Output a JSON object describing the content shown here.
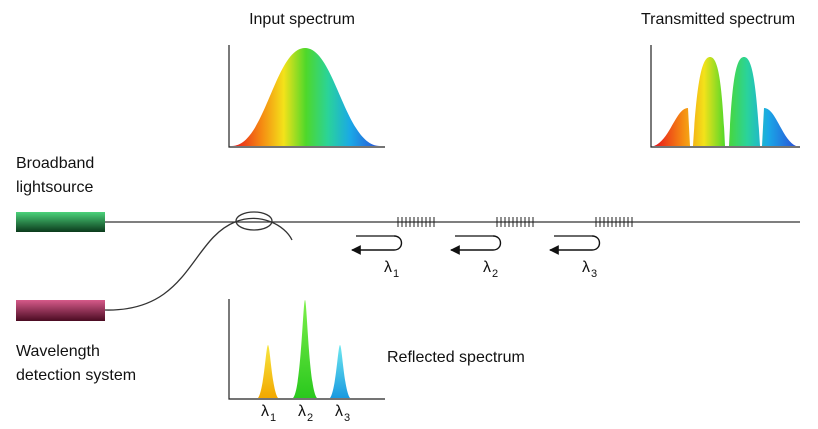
{
  "labels": {
    "input_spectrum": "Input spectrum",
    "transmitted_spectrum": "Transmitted spectrum",
    "reflected_spectrum": "Reflected spectrum",
    "source": [
      "Broadband",
      "lightsource"
    ],
    "detector": [
      "Wavelength",
      "detection system"
    ]
  },
  "gratings": [
    {
      "symbol": "λ",
      "index": "1"
    },
    {
      "symbol": "λ",
      "index": "2"
    },
    {
      "symbol": "λ",
      "index": "3"
    }
  ],
  "reflected_peaks": [
    {
      "symbol": "λ",
      "index": "1"
    },
    {
      "symbol": "λ",
      "index": "2"
    },
    {
      "symbol": "λ",
      "index": "3"
    }
  ]
}
